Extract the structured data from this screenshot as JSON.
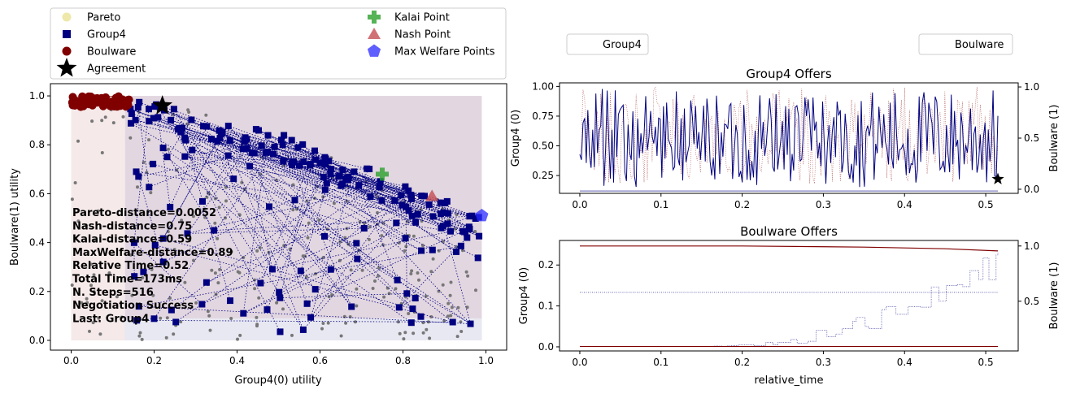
{
  "chart_data": [
    {
      "type": "scatter",
      "xlabel": "Group4(0) utility",
      "ylabel": "Boulware(1) utility",
      "xlim": [
        -0.05,
        1.05
      ],
      "ylim": [
        -0.04,
        1.05
      ],
      "xticks": [
        "0.0",
        "0.2",
        "0.4",
        "0.6",
        "0.8",
        "1.0"
      ],
      "yticks": [
        "0.0",
        "0.2",
        "0.4",
        "0.6",
        "0.8",
        "1.0"
      ],
      "legend": {
        "placement": "top",
        "entries": [
          "Pareto",
          "Group4",
          "Boulware",
          "Agreement",
          "Kalai Point",
          "Nash Point",
          "Max Welfare Points"
        ]
      },
      "series_colors": {
        "Pareto": "#eee8aa",
        "Group4": "#000080",
        "Boulware": "#800000",
        "Agreement": "#000000",
        "Kalai Point": "#2ca02c",
        "Nash Point": "#c44e52",
        "Max Welfare Points": "#2929ff"
      },
      "pareto_frontier": [
        [
          0.0,
          1.0
        ],
        [
          0.1,
          0.99
        ],
        [
          0.2,
          0.97
        ],
        [
          0.3,
          0.94
        ],
        [
          0.4,
          0.9
        ],
        [
          0.5,
          0.85
        ],
        [
          0.6,
          0.79
        ],
        [
          0.7,
          0.72
        ],
        [
          0.75,
          0.68
        ],
        [
          0.8,
          0.65
        ],
        [
          0.87,
          0.6
        ],
        [
          0.93,
          0.55
        ],
        [
          0.99,
          0.51
        ]
      ],
      "key_points": {
        "Agreement": [
          0.22,
          0.96
        ],
        "Kalai Point": [
          0.75,
          0.68
        ],
        "Nash Point": [
          0.87,
          0.59
        ],
        "Max Welfare Points": [
          0.99,
          0.51
        ]
      },
      "annotation_lines": [
        "Pareto-distance=0.0052",
        "Nash-distance=0.75",
        "Kalai-distance=0.59",
        "MaxWelfare-distance=0.89",
        "Relative Time=0.52",
        "Total Time=173ms",
        "N. Steps=516",
        "Negotiation Success",
        "Last: Group4"
      ]
    },
    {
      "type": "line",
      "title": "Group4 Offers",
      "ylabel_left": "Group4 (0)",
      "ylabel_right": "Boulware (1)",
      "legend": [
        "Group4"
      ],
      "xlim": [
        -0.025,
        0.54
      ],
      "ylim_left": [
        0.1,
        1.03
      ],
      "ylim_right": [
        -0.04,
        1.04
      ],
      "xticks": [
        "0.0",
        "0.1",
        "0.2",
        "0.3",
        "0.4",
        "0.5"
      ],
      "yticks_left": [
        "0.25",
        "0.50",
        "0.75",
        "1.00"
      ],
      "yticks_right": [
        "0.0",
        "0.5",
        "1.0"
      ],
      "agreement": [
        0.515,
        0.22
      ]
    },
    {
      "type": "line",
      "title": "Boulware Offers",
      "xlabel": "relative_time",
      "ylabel_left": "Group4 (0)",
      "ylabel_right": "Boulware (1)",
      "legend": [
        "Boulware"
      ],
      "xlim": [
        -0.025,
        0.54
      ],
      "ylim_left": [
        -0.01,
        0.26
      ],
      "ylim_right": [
        0.05,
        1.05
      ],
      "xticks": [
        "0.0",
        "0.1",
        "0.2",
        "0.3",
        "0.4",
        "0.5"
      ],
      "yticks_left": [
        "0.0",
        "0.1",
        "0.2"
      ],
      "yticks_right": [
        "0.5",
        "1.0"
      ],
      "boulware_curve_right": [
        [
          0.0,
          1.0
        ],
        [
          0.2,
          1.0
        ],
        [
          0.35,
          0.99
        ],
        [
          0.45,
          0.975
        ],
        [
          0.515,
          0.955
        ]
      ]
    }
  ]
}
